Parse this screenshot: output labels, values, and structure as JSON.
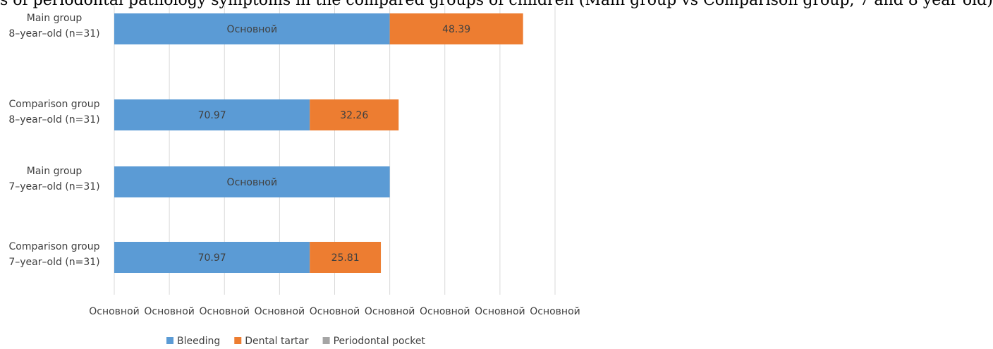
{
  "header_fragment": "s of periodontal pathology symptoms in the compared groups of children (Main group vs Comparison group, 7 and 8 year old)",
  "chart_data": {
    "type": "bar",
    "orientation": "horizontal",
    "stacked": true,
    "categories": [
      [
        "Main group",
        "8–year–old (n=31)"
      ],
      [
        "Comparison group",
        "8–year–old (n=31)"
      ],
      [
        "Main group",
        "7–year–old (n=31)"
      ],
      [
        "Comparison group",
        "7–year–old (n=31)"
      ]
    ],
    "series": [
      {
        "name": "Bleeding",
        "color": "#5B9BD5",
        "values": [
          100,
          70.97,
          100,
          70.97
        ],
        "labels": [
          "Основной",
          "70.97",
          "Основной",
          "70.97"
        ]
      },
      {
        "name": "Dental tartar",
        "color": "#ED7D31",
        "values": [
          48.39,
          32.26,
          0,
          25.81
        ],
        "labels": [
          "48.39",
          "32.26",
          "",
          "25.81"
        ]
      },
      {
        "name": "Periodontal pocket",
        "color": "#A5A5A5",
        "values": [
          0,
          0,
          0,
          0
        ],
        "labels": [
          "",
          "",
          "",
          ""
        ]
      }
    ],
    "xlim": [
      0,
      160
    ],
    "x_ticks": [
      0,
      20,
      40,
      60,
      80,
      100,
      120,
      140,
      160
    ],
    "x_tick_labels": [
      "Основной",
      "Основной",
      "Основной",
      "Основной",
      "Основной",
      "Основной",
      "Основной",
      "Основной",
      "Основной"
    ],
    "grid": true,
    "legend_position": "bottom"
  }
}
